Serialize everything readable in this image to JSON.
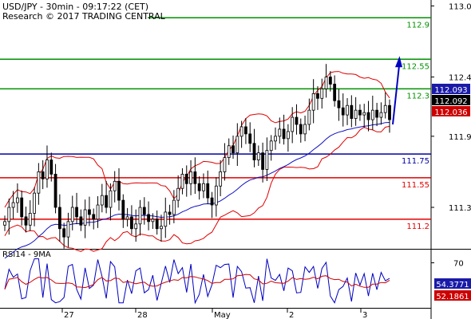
{
  "header": {
    "line1": "USD/JPY - 30min - 09:17:22 (CET)",
    "line2": "Research © 2017 TRADING CENTRAL"
  },
  "rsi_title": "RSI14 - 9MA",
  "colors": {
    "candles": "#000000",
    "bollinger": "#e00000",
    "moving_average": "#1010c0",
    "resistance": "#009000",
    "pivot": "#0000a0",
    "support": "#e00000",
    "arrow": "#0000c0",
    "rsi": "#0000c0",
    "rsi_ma": "#d00000",
    "price_tag_blue": "#1a1aa8",
    "price_tag_black": "#000000",
    "price_tag_red": "#cc0000"
  },
  "chart_data": [
    {
      "type": "candlestick",
      "instrument": "USD/JPY",
      "timeframe": "30min",
      "x_tick_labels": [
        "27",
        "28",
        "May",
        "2",
        "3"
      ],
      "y_tick_labels": [
        "113.0",
        "112.4",
        "111.9",
        "111.3"
      ],
      "ylim": [
        110.95,
        113.05
      ],
      "grid": false,
      "levels": [
        {
          "label": "112.9",
          "value": 112.9,
          "kind": "resistance"
        },
        {
          "label": "112.55",
          "value": 112.55,
          "kind": "resistance"
        },
        {
          "label": "112.3",
          "value": 112.3,
          "kind": "resistance"
        },
        {
          "label": "111.75",
          "value": 111.75,
          "kind": "pivot"
        },
        {
          "label": "111.55",
          "value": 111.55,
          "kind": "support"
        },
        {
          "label": "111.2",
          "value": 111.2,
          "kind": "support"
        }
      ],
      "price_tags": [
        {
          "label": "112.093",
          "value": 112.093,
          "style": "blue"
        },
        {
          "label": "112.092",
          "value": 112.092,
          "style": "black"
        },
        {
          "label": "112.036",
          "value": 112.036,
          "style": "red"
        }
      ],
      "closes": [
        111.18,
        111.3,
        111.34,
        111.38,
        111.22,
        111.15,
        111.25,
        111.42,
        111.6,
        111.54,
        111.7,
        111.58,
        111.3,
        111.12,
        111.05,
        111.18,
        111.3,
        111.22,
        111.15,
        111.28,
        111.24,
        111.2,
        111.32,
        111.4,
        111.3,
        111.44,
        111.52,
        111.36,
        111.2,
        111.22,
        111.12,
        111.16,
        111.3,
        111.24,
        111.18,
        111.2,
        111.12,
        111.14,
        111.26,
        111.24,
        111.36,
        111.46,
        111.58,
        111.5,
        111.6,
        111.5,
        111.44,
        111.5,
        111.38,
        111.32,
        111.48,
        111.6,
        111.72,
        111.82,
        111.76,
        111.9,
        111.98,
        111.92,
        111.84,
        111.7,
        111.76,
        111.62,
        111.78,
        111.86,
        111.9,
        111.96,
        111.88,
        111.94,
        112.06,
        112.0,
        111.92,
        112.0,
        112.12,
        112.26,
        112.22,
        112.3,
        112.4,
        112.34,
        112.2,
        112.14,
        112.08,
        112.16,
        112.05,
        112.12,
        112.08,
        112.1,
        112.04,
        112.12,
        112.06,
        112.1,
        112.16,
        112.04
      ],
      "projection_arrow": {
        "from": 112.0,
        "to": 112.55
      }
    },
    {
      "type": "line",
      "title": "RSI14 - 9MA",
      "y_tick_labels": [
        "70"
      ],
      "ylim": [
        25,
        80
      ],
      "tags": [
        {
          "label": "54.3771",
          "value": 54.3771,
          "style": "blue"
        },
        {
          "label": "52.1861",
          "value": 52.1861,
          "style": "red"
        }
      ]
    }
  ]
}
